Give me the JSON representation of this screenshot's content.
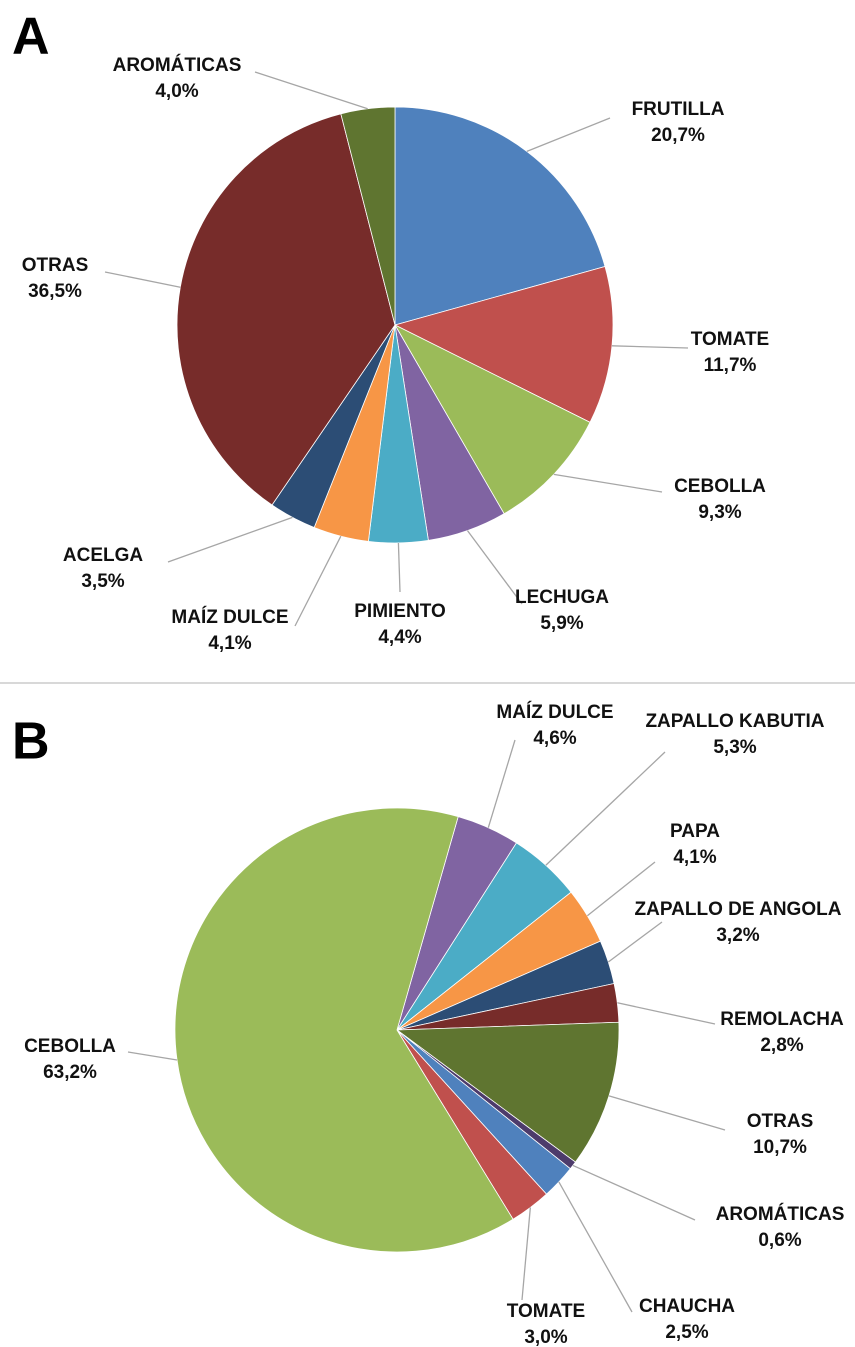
{
  "chart_data": [
    {
      "type": "pie",
      "panel": "A",
      "categories": [
        "FRUTILLA",
        "TOMATE",
        "CEBOLLA",
        "LECHUGA",
        "PIMIENTO",
        "MAÍZ DULCE",
        "ACELGA",
        "OTRAS",
        "AROMÁTICAS"
      ],
      "values": [
        20.7,
        11.7,
        9.3,
        5.9,
        4.4,
        4.1,
        3.5,
        36.5,
        4.0
      ],
      "value_labels": [
        "20,7%",
        "11,7%",
        "9,3%",
        "5,9%",
        "4,4%",
        "4,1%",
        "3,5%",
        "36,5%",
        "4,0%"
      ],
      "colors": [
        "#4f81bd",
        "#c0504d",
        "#9bbb59",
        "#8064a2",
        "#4bacc6",
        "#f79646",
        "#2c4d75",
        "#772c2a",
        "#5f7530"
      ]
    },
    {
      "type": "pie",
      "panel": "B",
      "categories": [
        "MAÍZ DULCE",
        "ZAPALLO KABUTIA",
        "PAPA",
        "ZAPALLO DE ANGOLA",
        "REMOLACHA",
        "OTRAS",
        "AROMÁTICAS",
        "CHAUCHA",
        "TOMATE",
        "CEBOLLA"
      ],
      "values": [
        4.6,
        5.3,
        4.1,
        3.2,
        2.8,
        10.7,
        0.6,
        2.5,
        3.0,
        63.2
      ],
      "value_labels": [
        "4,6%",
        "5,3%",
        "4,1%",
        "3,2%",
        "2,8%",
        "10,7%",
        "0,6%",
        "2,5%",
        "3,0%",
        "63,2%"
      ],
      "colors": [
        "#8064a2",
        "#4bacc6",
        "#f79646",
        "#2c4d75",
        "#772c2a",
        "#5f7530",
        "#4d3b6b",
        "#4f81bd",
        "#c0504d",
        "#9bbb59"
      ]
    }
  ]
}
